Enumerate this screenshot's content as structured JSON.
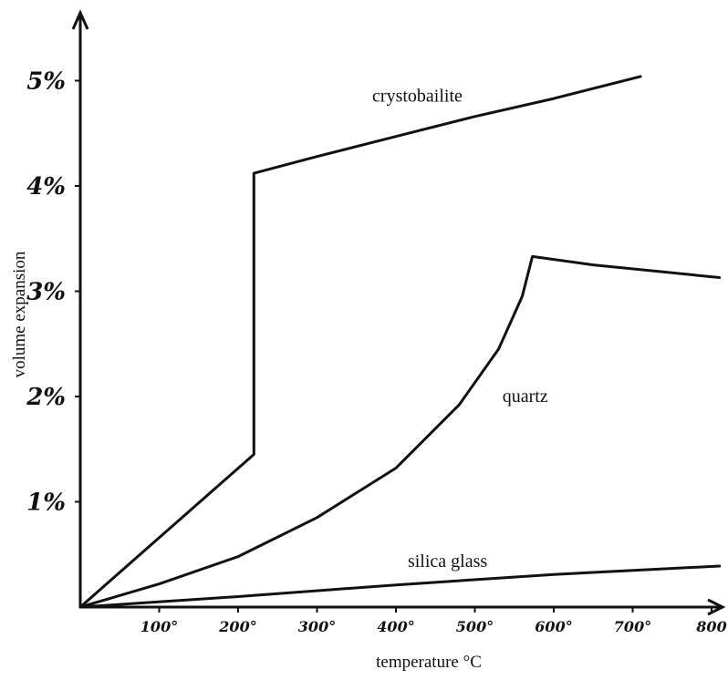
{
  "chart_data": {
    "type": "line",
    "title": "",
    "xlabel": "temperature °C",
    "ylabel": "volume expansion",
    "xlim": [
      0,
      820
    ],
    "ylim": [
      0,
      5.4
    ],
    "x_ticks": [
      {
        "value": 100,
        "label": "100°"
      },
      {
        "value": 200,
        "label": "200°"
      },
      {
        "value": 300,
        "label": "300°"
      },
      {
        "value": 400,
        "label": "400°"
      },
      {
        "value": 500,
        "label": "500°"
      },
      {
        "value": 600,
        "label": "600°"
      },
      {
        "value": 700,
        "label": "700°"
      },
      {
        "value": 800,
        "label": "800"
      }
    ],
    "y_ticks": [
      {
        "value": 1,
        "label": "1%"
      },
      {
        "value": 2,
        "label": "2%"
      },
      {
        "value": 3,
        "label": "3%"
      },
      {
        "value": 4,
        "label": "4%"
      },
      {
        "value": 5,
        "label": "5%"
      }
    ],
    "grid": false,
    "legend": "none",
    "series": [
      {
        "name": "crystobailite",
        "label_at": {
          "x": 370,
          "y": 4.8
        },
        "points": [
          [
            0,
            0
          ],
          [
            220,
            1.45
          ],
          [
            220,
            4.12
          ],
          [
            300,
            4.28
          ],
          [
            400,
            4.47
          ],
          [
            500,
            4.66
          ],
          [
            600,
            4.83
          ],
          [
            710,
            5.04
          ]
        ]
      },
      {
        "name": "quartz",
        "label_at": {
          "x": 535,
          "y": 1.95
        },
        "points": [
          [
            0,
            0
          ],
          [
            100,
            0.22
          ],
          [
            200,
            0.48
          ],
          [
            300,
            0.85
          ],
          [
            400,
            1.32
          ],
          [
            480,
            1.92
          ],
          [
            530,
            2.45
          ],
          [
            560,
            2.95
          ],
          [
            573,
            3.33
          ],
          [
            650,
            3.25
          ],
          [
            810,
            3.13
          ]
        ]
      },
      {
        "name": "silica glass",
        "label_at": {
          "x": 415,
          "y": 0.38
        },
        "points": [
          [
            0,
            0
          ],
          [
            200,
            0.1
          ],
          [
            400,
            0.21
          ],
          [
            600,
            0.31
          ],
          [
            810,
            0.39
          ]
        ]
      }
    ]
  }
}
